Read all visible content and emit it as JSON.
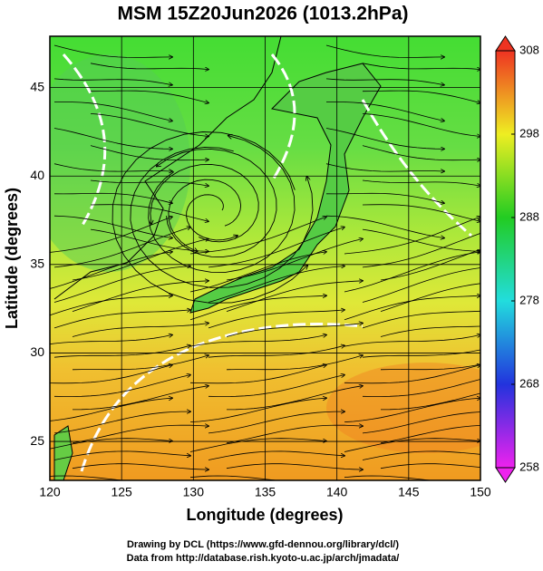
{
  "chart_data": {
    "type": "map",
    "title": "MSM 15Z20Jun2026 (1013.2hPa)",
    "xlabel": "Longitude (degrees)",
    "ylabel": "Latitude  (degrees)",
    "xlim": [
      120,
      150
    ],
    "xticks": [
      120,
      125,
      130,
      135,
      140,
      145,
      150
    ],
    "ylim": [
      22.8,
      47.9
    ],
    "yticks": [
      25,
      30,
      35,
      40,
      45
    ],
    "grid": true,
    "colorbar": {
      "lim": [
        258,
        308
      ],
      "ticks": [
        258,
        268,
        278,
        288,
        298,
        308
      ],
      "colors": [
        "#ee22ee",
        "#2233dd",
        "#22dddd",
        "#22cc22",
        "#eeee22",
        "#ee3322"
      ]
    },
    "footer": [
      "Drawing by DCL (https://www.gfd-dennou.org/library/dcl/)",
      "Data from http://database.rish.kyoto-u.ac.jp/arch/jmadata/"
    ]
  }
}
